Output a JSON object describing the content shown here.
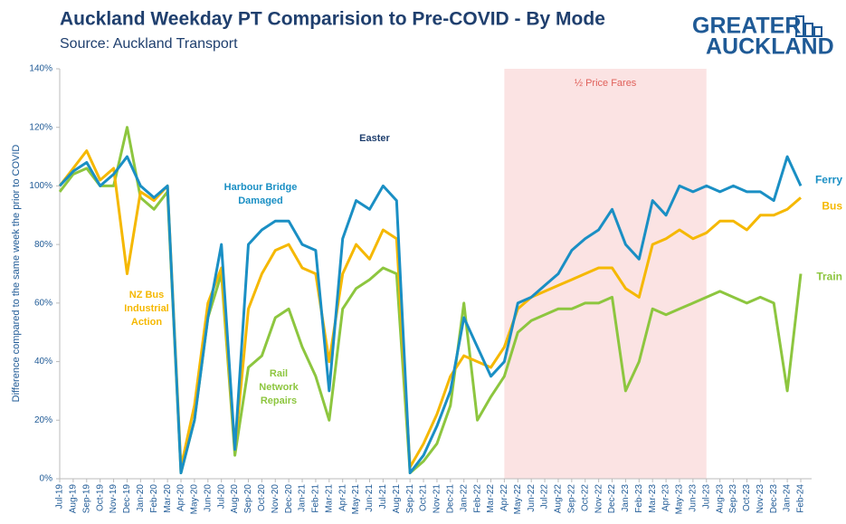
{
  "chart_data": {
    "type": "line",
    "title": "Auckland Weekday PT Comparision to Pre-COVID - By Mode",
    "subtitle": "Source: Auckland Transport",
    "logo": [
      "GREATER",
      "AUCKLAND"
    ],
    "y_label": "Difference compared to the same week the prior to COVID",
    "categories": [
      "Jul-19",
      "Aug-19",
      "Sep-19",
      "Oct-19",
      "Nov-19",
      "Dec-19",
      "Jan-20",
      "Feb-20",
      "Mar-20",
      "Apr-20",
      "May-20",
      "Jun-20",
      "Jul-20",
      "Aug-20",
      "Sep-20",
      "Oct-20",
      "Nov-20",
      "Dec-20",
      "Jan-21",
      "Feb-21",
      "Mar-21",
      "Apr-21",
      "May-21",
      "Jun-21",
      "Jul-21",
      "Aug-21",
      "Sep-21",
      "Oct-21",
      "Nov-21",
      "Dec-21",
      "Jan-22",
      "Feb-22",
      "Mar-22",
      "Apr-22",
      "May-22",
      "Jun-22",
      "Jul-22",
      "Aug-22",
      "Sep-22",
      "Oct-22",
      "Nov-22",
      "Dec-22",
      "Jan-23",
      "Feb-23",
      "Mar-23",
      "Apr-23",
      "May-23",
      "Jun-23",
      "Jul-23",
      "Aug-23",
      "Sep-23",
      "Oct-23",
      "Nov-23",
      "Dec-23",
      "Jan-24",
      "Feb-24"
    ],
    "series": [
      {
        "name": "Ferry",
        "color": "#1a8fc4",
        "values": [
          100,
          105,
          108,
          100,
          104,
          110,
          100,
          96,
          100,
          2,
          20,
          55,
          80,
          10,
          80,
          85,
          88,
          88,
          80,
          78,
          30,
          82,
          95,
          92,
          100,
          95,
          2,
          8,
          18,
          30,
          55,
          45,
          35,
          40,
          60,
          62,
          66,
          70,
          78,
          82,
          85,
          92,
          80,
          75,
          95,
          90,
          100,
          98,
          100,
          98,
          100,
          98,
          98,
          95,
          110,
          100
        ]
      },
      {
        "name": "Bus",
        "color": "#f5b800",
        "values": [
          100,
          106,
          112,
          102,
          106,
          70,
          98,
          95,
          100,
          4,
          25,
          60,
          72,
          10,
          58,
          70,
          78,
          80,
          72,
          70,
          40,
          70,
          80,
          75,
          85,
          82,
          4,
          12,
          22,
          35,
          42,
          40,
          38,
          45,
          58,
          62,
          64,
          66,
          68,
          70,
          72,
          72,
          65,
          62,
          80,
          82,
          85,
          82,
          84,
          88,
          88,
          85,
          90,
          90,
          92,
          96
        ]
      },
      {
        "name": "Train",
        "color": "#8dc63f",
        "values": [
          98,
          104,
          106,
          100,
          100,
          120,
          96,
          92,
          98,
          2,
          20,
          55,
          70,
          8,
          38,
          42,
          55,
          58,
          45,
          35,
          20,
          58,
          65,
          68,
          72,
          70,
          2,
          6,
          12,
          25,
          60,
          20,
          28,
          35,
          50,
          54,
          56,
          58,
          58,
          60,
          60,
          62,
          30,
          40,
          58,
          56,
          58,
          60,
          62,
          64,
          62,
          60,
          62,
          60,
          30,
          70
        ]
      }
    ],
    "ylim": [
      0,
      140
    ],
    "yticks": [
      {
        "value": 0,
        "label": "0%"
      },
      {
        "value": 20,
        "label": "20%"
      },
      {
        "value": 40,
        "label": "40%"
      },
      {
        "value": 60,
        "label": "60%"
      },
      {
        "value": 80,
        "label": "80%"
      },
      {
        "value": 100,
        "label": "100%"
      },
      {
        "value": 120,
        "label": "120%"
      },
      {
        "value": 140,
        "label": "140%"
      }
    ],
    "shade": {
      "label": "½ Price Fares",
      "from": "Apr-22",
      "to": "Jul-23",
      "color": "#fbe3e3"
    },
    "annotations": [
      {
        "lines": [
          "NZ Bus",
          "Industrial",
          "Action"
        ],
        "color": "#f5b800"
      },
      {
        "lines": [
          "Harbour Bridge",
          "Damaged"
        ],
        "color": "#1a8fc4"
      },
      {
        "lines": [
          "Easter"
        ],
        "color": "#1f3f6e"
      },
      {
        "lines": [
          "Rail",
          "Network",
          "Repairs"
        ],
        "color": "#8dc63f"
      }
    ]
  }
}
